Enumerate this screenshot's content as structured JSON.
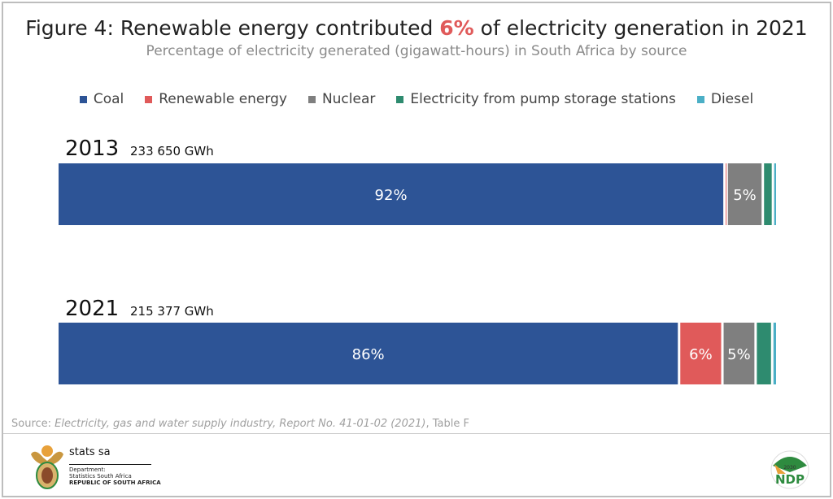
{
  "title_parts": {
    "before": "Figure 4: Renewable energy contributed ",
    "highlight": "6%",
    "after": " of electricity generation in 2021"
  },
  "subtitle": "Percentage of electricity generated (gigawatt-hours) in South Africa by source",
  "chart_data": {
    "type": "bar",
    "orientation": "horizontal-stacked-100",
    "categories": [
      "2013",
      "2021"
    ],
    "totals": [
      "233 650 GWh",
      "215 377 GWh"
    ],
    "legend_position": "top",
    "series": [
      {
        "name": "Coal",
        "color": "#2d5496",
        "values": [
          92.3,
          86.1
        ],
        "labels": [
          "92%",
          "86%"
        ]
      },
      {
        "name": "Renewable energy",
        "color": "#e05a5a",
        "values": [
          0.3,
          6.0
        ],
        "labels": [
          "",
          "6%"
        ]
      },
      {
        "name": "Nuclear",
        "color": "#7f7f7f",
        "values": [
          5.0,
          4.6
        ],
        "labels": [
          "5%",
          "5%"
        ]
      },
      {
        "name": "Electricity from pump storage stations",
        "color": "#2e8b6f",
        "values": [
          1.4,
          2.3
        ],
        "labels": [
          "",
          ""
        ]
      },
      {
        "name": "Diesel",
        "color": "#4bafc6",
        "values": [
          0.6,
          0.7
        ],
        "labels": [
          "",
          ""
        ]
      }
    ]
  },
  "source": {
    "prefix": "Source: ",
    "report": "Electricity, gas and water supply industry, Report No. 41-01-02 (2021)",
    "suffix": ", Table F"
  },
  "logo": {
    "name": "stats sa",
    "dept1": "Department:",
    "dept2": "Statistics South Africa",
    "dept3": "REPUBLIC OF SOUTH AFRICA",
    "ndp": "NDP",
    "ndp_year": "2030"
  }
}
